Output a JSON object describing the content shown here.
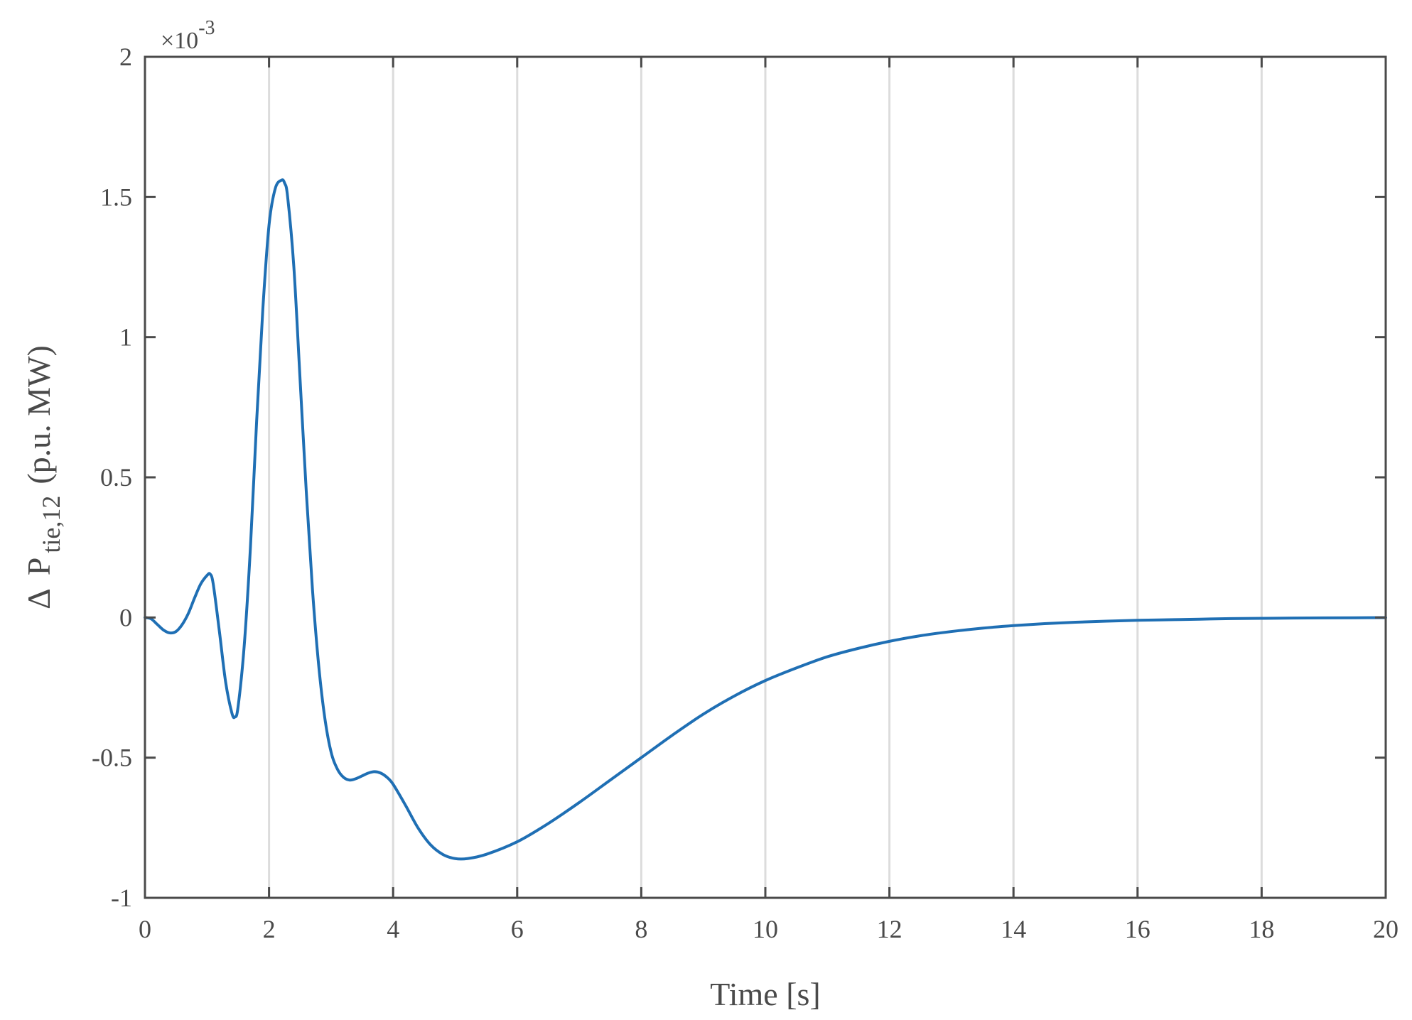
{
  "chart_data": {
    "type": "line",
    "title": "",
    "xlabel": "Time [s]",
    "ylabel": {
      "delta": "Δ",
      "symbol": "P",
      "subscript": "tie,12",
      "unit": "(p.u. MW)"
    },
    "y_multiplier": {
      "base": "×10",
      "exponent": "-3"
    },
    "xlim": [
      0,
      20
    ],
    "ylim": [
      -1,
      2
    ],
    "xticks": [
      0,
      2,
      4,
      6,
      8,
      10,
      12,
      14,
      16,
      18,
      20
    ],
    "yticks": [
      -1,
      -0.5,
      0,
      0.5,
      1,
      1.5,
      2
    ],
    "xtick_labels": [
      "0",
      "2",
      "4",
      "6",
      "8",
      "10",
      "12",
      "14",
      "16",
      "18",
      "20"
    ],
    "ytick_labels": [
      "-1",
      "-0.5",
      "0",
      "0.5",
      "1",
      "1.5",
      "2"
    ],
    "grid": "vertical",
    "line_color": "#1f6fb4",
    "grid_color": "#dcdcdc",
    "axis_color": "#4a4a4a",
    "series": [
      {
        "x": [
          0,
          0.1,
          0.2,
          0.3,
          0.4,
          0.5,
          0.6,
          0.7,
          0.8,
          0.9,
          1.0,
          1.05,
          1.1,
          1.2,
          1.3,
          1.4,
          1.45,
          1.5,
          1.6,
          1.7,
          1.8,
          1.9,
          2.0,
          2.1,
          2.2,
          2.25,
          2.3,
          2.4,
          2.5,
          2.6,
          2.7,
          2.8,
          2.9,
          3.0,
          3.1,
          3.2,
          3.3,
          3.4,
          3.5,
          3.6,
          3.7,
          3.8,
          3.9,
          4.0,
          4.2,
          4.4,
          4.6,
          4.8,
          5.0,
          5.2,
          5.5,
          6.0,
          6.5,
          7.0,
          7.5,
          8.0,
          8.5,
          9.0,
          9.5,
          10.0,
          10.5,
          11.0,
          11.5,
          12.0,
          12.5,
          13.0,
          13.5,
          14.0,
          14.5,
          15.0,
          15.5,
          16.0,
          16.5,
          17.0,
          17.5,
          18.0,
          18.5,
          19.0,
          19.5,
          20.0
        ],
        "y": [
          0,
          -0.005,
          -0.025,
          -0.045,
          -0.055,
          -0.05,
          -0.025,
          0.015,
          0.07,
          0.12,
          0.15,
          0.155,
          0.12,
          -0.05,
          -0.23,
          -0.34,
          -0.355,
          -0.32,
          -0.1,
          0.25,
          0.7,
          1.1,
          1.4,
          1.53,
          1.56,
          1.55,
          1.5,
          1.25,
          0.85,
          0.45,
          0.1,
          -0.17,
          -0.36,
          -0.48,
          -0.54,
          -0.57,
          -0.58,
          -0.575,
          -0.565,
          -0.555,
          -0.55,
          -0.555,
          -0.57,
          -0.595,
          -0.67,
          -0.75,
          -0.81,
          -0.845,
          -0.86,
          -0.86,
          -0.845,
          -0.8,
          -0.735,
          -0.66,
          -0.58,
          -0.5,
          -0.42,
          -0.345,
          -0.28,
          -0.225,
          -0.18,
          -0.14,
          -0.11,
          -0.085,
          -0.065,
          -0.05,
          -0.038,
          -0.029,
          -0.022,
          -0.017,
          -0.013,
          -0.01,
          -0.008,
          -0.006,
          -0.004,
          -0.003,
          -0.002,
          -0.0015,
          -0.001,
          -0.0005
        ]
      }
    ]
  }
}
